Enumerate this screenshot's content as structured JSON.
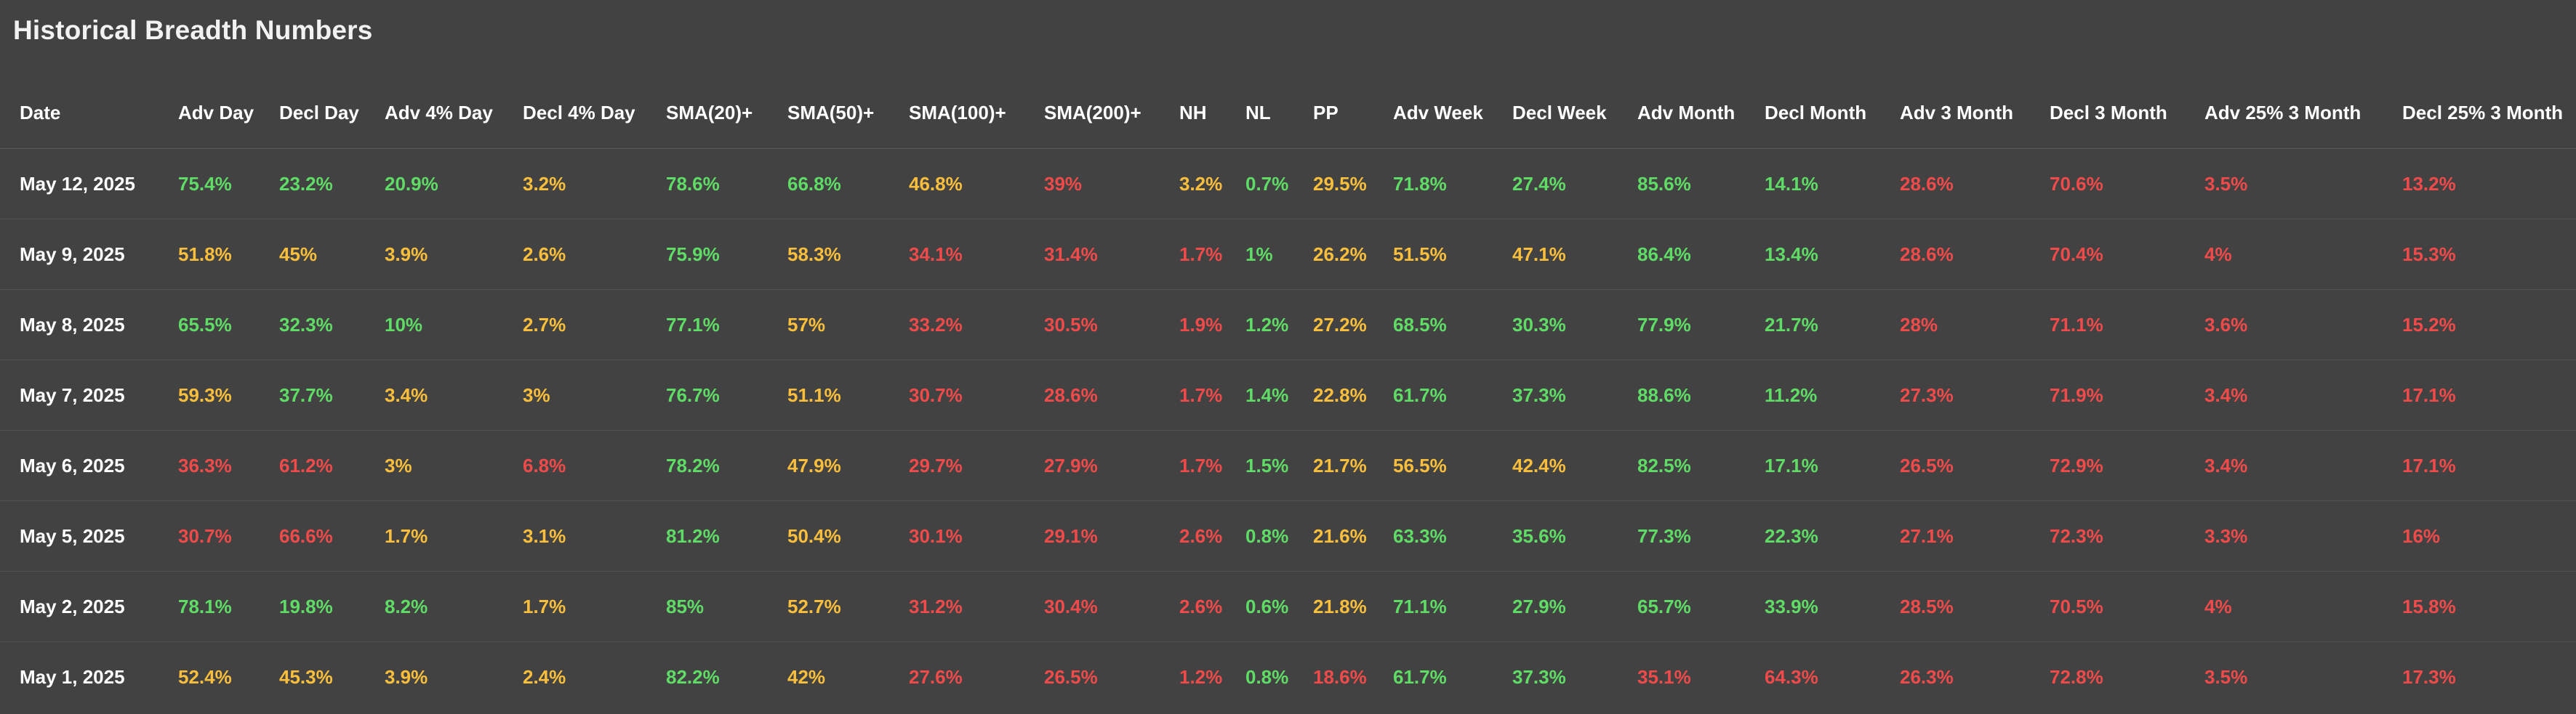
{
  "page": {
    "title": "Historical Breadth Numbers"
  },
  "colors": {
    "background": "#424242",
    "header_text": "#ffffff",
    "green": "#5fdc66",
    "yellow": "#f9bf3c",
    "red": "#f04a4a",
    "row_divider": "#535353"
  },
  "table": {
    "columns": [
      "Date",
      "Adv Day",
      "Decl Day",
      "Adv 4% Day",
      "Decl 4% Day",
      "SMA(20)+",
      "SMA(50)+",
      "SMA(100)+",
      "SMA(200)+",
      "NH",
      "NL",
      "PP",
      "Adv Week",
      "Decl Week",
      "Adv Month",
      "Decl Month",
      "Adv 3 Month",
      "Decl 3 Month",
      "Adv 25% 3 Month",
      "Decl 25% 3 Month"
    ],
    "rows": [
      {
        "date": "May 12, 2025",
        "cells": [
          {
            "v": "75.4%",
            "c": "green"
          },
          {
            "v": "23.2%",
            "c": "green"
          },
          {
            "v": "20.9%",
            "c": "green"
          },
          {
            "v": "3.2%",
            "c": "yellow"
          },
          {
            "v": "78.6%",
            "c": "green"
          },
          {
            "v": "66.8%",
            "c": "green"
          },
          {
            "v": "46.8%",
            "c": "yellow"
          },
          {
            "v": "39%",
            "c": "red"
          },
          {
            "v": "3.2%",
            "c": "yellow"
          },
          {
            "v": "0.7%",
            "c": "green"
          },
          {
            "v": "29.5%",
            "c": "yellow"
          },
          {
            "v": "71.8%",
            "c": "green"
          },
          {
            "v": "27.4%",
            "c": "green"
          },
          {
            "v": "85.6%",
            "c": "green"
          },
          {
            "v": "14.1%",
            "c": "green"
          },
          {
            "v": "28.6%",
            "c": "red"
          },
          {
            "v": "70.6%",
            "c": "red"
          },
          {
            "v": "3.5%",
            "c": "red"
          },
          {
            "v": "13.2%",
            "c": "red"
          }
        ]
      },
      {
        "date": "May 9, 2025",
        "cells": [
          {
            "v": "51.8%",
            "c": "yellow"
          },
          {
            "v": "45%",
            "c": "yellow"
          },
          {
            "v": "3.9%",
            "c": "yellow"
          },
          {
            "v": "2.6%",
            "c": "yellow"
          },
          {
            "v": "75.9%",
            "c": "green"
          },
          {
            "v": "58.3%",
            "c": "yellow"
          },
          {
            "v": "34.1%",
            "c": "red"
          },
          {
            "v": "31.4%",
            "c": "red"
          },
          {
            "v": "1.7%",
            "c": "red"
          },
          {
            "v": "1%",
            "c": "green"
          },
          {
            "v": "26.2%",
            "c": "yellow"
          },
          {
            "v": "51.5%",
            "c": "yellow"
          },
          {
            "v": "47.1%",
            "c": "yellow"
          },
          {
            "v": "86.4%",
            "c": "green"
          },
          {
            "v": "13.4%",
            "c": "green"
          },
          {
            "v": "28.6%",
            "c": "red"
          },
          {
            "v": "70.4%",
            "c": "red"
          },
          {
            "v": "4%",
            "c": "red"
          },
          {
            "v": "15.3%",
            "c": "red"
          }
        ]
      },
      {
        "date": "May 8, 2025",
        "cells": [
          {
            "v": "65.5%",
            "c": "green"
          },
          {
            "v": "32.3%",
            "c": "green"
          },
          {
            "v": "10%",
            "c": "green"
          },
          {
            "v": "2.7%",
            "c": "yellow"
          },
          {
            "v": "77.1%",
            "c": "green"
          },
          {
            "v": "57%",
            "c": "yellow"
          },
          {
            "v": "33.2%",
            "c": "red"
          },
          {
            "v": "30.5%",
            "c": "red"
          },
          {
            "v": "1.9%",
            "c": "red"
          },
          {
            "v": "1.2%",
            "c": "green"
          },
          {
            "v": "27.2%",
            "c": "yellow"
          },
          {
            "v": "68.5%",
            "c": "green"
          },
          {
            "v": "30.3%",
            "c": "green"
          },
          {
            "v": "77.9%",
            "c": "green"
          },
          {
            "v": "21.7%",
            "c": "green"
          },
          {
            "v": "28%",
            "c": "red"
          },
          {
            "v": "71.1%",
            "c": "red"
          },
          {
            "v": "3.6%",
            "c": "red"
          },
          {
            "v": "15.2%",
            "c": "red"
          }
        ]
      },
      {
        "date": "May 7, 2025",
        "cells": [
          {
            "v": "59.3%",
            "c": "yellow"
          },
          {
            "v": "37.7%",
            "c": "green"
          },
          {
            "v": "3.4%",
            "c": "yellow"
          },
          {
            "v": "3%",
            "c": "yellow"
          },
          {
            "v": "76.7%",
            "c": "green"
          },
          {
            "v": "51.1%",
            "c": "yellow"
          },
          {
            "v": "30.7%",
            "c": "red"
          },
          {
            "v": "28.6%",
            "c": "red"
          },
          {
            "v": "1.7%",
            "c": "red"
          },
          {
            "v": "1.4%",
            "c": "green"
          },
          {
            "v": "22.8%",
            "c": "yellow"
          },
          {
            "v": "61.7%",
            "c": "green"
          },
          {
            "v": "37.3%",
            "c": "green"
          },
          {
            "v": "88.6%",
            "c": "green"
          },
          {
            "v": "11.2%",
            "c": "green"
          },
          {
            "v": "27.3%",
            "c": "red"
          },
          {
            "v": "71.9%",
            "c": "red"
          },
          {
            "v": "3.4%",
            "c": "red"
          },
          {
            "v": "17.1%",
            "c": "red"
          }
        ]
      },
      {
        "date": "May 6, 2025",
        "cells": [
          {
            "v": "36.3%",
            "c": "red"
          },
          {
            "v": "61.2%",
            "c": "red"
          },
          {
            "v": "3%",
            "c": "yellow"
          },
          {
            "v": "6.8%",
            "c": "red"
          },
          {
            "v": "78.2%",
            "c": "green"
          },
          {
            "v": "47.9%",
            "c": "yellow"
          },
          {
            "v": "29.7%",
            "c": "red"
          },
          {
            "v": "27.9%",
            "c": "red"
          },
          {
            "v": "1.7%",
            "c": "red"
          },
          {
            "v": "1.5%",
            "c": "green"
          },
          {
            "v": "21.7%",
            "c": "yellow"
          },
          {
            "v": "56.5%",
            "c": "yellow"
          },
          {
            "v": "42.4%",
            "c": "yellow"
          },
          {
            "v": "82.5%",
            "c": "green"
          },
          {
            "v": "17.1%",
            "c": "green"
          },
          {
            "v": "26.5%",
            "c": "red"
          },
          {
            "v": "72.9%",
            "c": "red"
          },
          {
            "v": "3.4%",
            "c": "red"
          },
          {
            "v": "17.1%",
            "c": "red"
          }
        ]
      },
      {
        "date": "May 5, 2025",
        "cells": [
          {
            "v": "30.7%",
            "c": "red"
          },
          {
            "v": "66.6%",
            "c": "red"
          },
          {
            "v": "1.7%",
            "c": "yellow"
          },
          {
            "v": "3.1%",
            "c": "yellow"
          },
          {
            "v": "81.2%",
            "c": "green"
          },
          {
            "v": "50.4%",
            "c": "yellow"
          },
          {
            "v": "30.1%",
            "c": "red"
          },
          {
            "v": "29.1%",
            "c": "red"
          },
          {
            "v": "2.6%",
            "c": "red"
          },
          {
            "v": "0.8%",
            "c": "green"
          },
          {
            "v": "21.6%",
            "c": "yellow"
          },
          {
            "v": "63.3%",
            "c": "green"
          },
          {
            "v": "35.6%",
            "c": "green"
          },
          {
            "v": "77.3%",
            "c": "green"
          },
          {
            "v": "22.3%",
            "c": "green"
          },
          {
            "v": "27.1%",
            "c": "red"
          },
          {
            "v": "72.3%",
            "c": "red"
          },
          {
            "v": "3.3%",
            "c": "red"
          },
          {
            "v": "16%",
            "c": "red"
          }
        ]
      },
      {
        "date": "May 2, 2025",
        "cells": [
          {
            "v": "78.1%",
            "c": "green"
          },
          {
            "v": "19.8%",
            "c": "green"
          },
          {
            "v": "8.2%",
            "c": "green"
          },
          {
            "v": "1.7%",
            "c": "yellow"
          },
          {
            "v": "85%",
            "c": "green"
          },
          {
            "v": "52.7%",
            "c": "yellow"
          },
          {
            "v": "31.2%",
            "c": "red"
          },
          {
            "v": "30.4%",
            "c": "red"
          },
          {
            "v": "2.6%",
            "c": "red"
          },
          {
            "v": "0.6%",
            "c": "green"
          },
          {
            "v": "21.8%",
            "c": "yellow"
          },
          {
            "v": "71.1%",
            "c": "green"
          },
          {
            "v": "27.9%",
            "c": "green"
          },
          {
            "v": "65.7%",
            "c": "green"
          },
          {
            "v": "33.9%",
            "c": "green"
          },
          {
            "v": "28.5%",
            "c": "red"
          },
          {
            "v": "70.5%",
            "c": "red"
          },
          {
            "v": "4%",
            "c": "red"
          },
          {
            "v": "15.8%",
            "c": "red"
          }
        ]
      },
      {
        "date": "May 1, 2025",
        "cells": [
          {
            "v": "52.4%",
            "c": "yellow"
          },
          {
            "v": "45.3%",
            "c": "yellow"
          },
          {
            "v": "3.9%",
            "c": "yellow"
          },
          {
            "v": "2.4%",
            "c": "yellow"
          },
          {
            "v": "82.2%",
            "c": "green"
          },
          {
            "v": "42%",
            "c": "yellow"
          },
          {
            "v": "27.6%",
            "c": "red"
          },
          {
            "v": "26.5%",
            "c": "red"
          },
          {
            "v": "1.2%",
            "c": "red"
          },
          {
            "v": "0.8%",
            "c": "green"
          },
          {
            "v": "18.6%",
            "c": "red"
          },
          {
            "v": "61.7%",
            "c": "green"
          },
          {
            "v": "37.3%",
            "c": "green"
          },
          {
            "v": "35.1%",
            "c": "red"
          },
          {
            "v": "64.3%",
            "c": "red"
          },
          {
            "v": "26.3%",
            "c": "red"
          },
          {
            "v": "72.8%",
            "c": "red"
          },
          {
            "v": "3.5%",
            "c": "red"
          },
          {
            "v": "17.3%",
            "c": "red"
          }
        ]
      }
    ]
  }
}
